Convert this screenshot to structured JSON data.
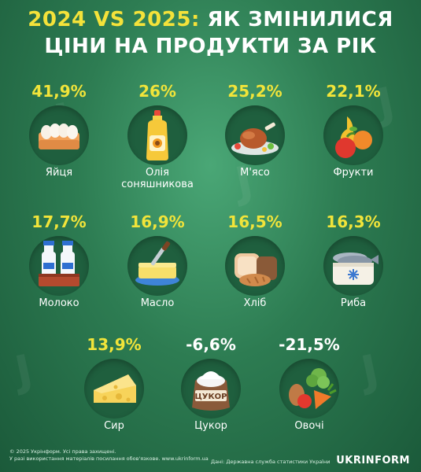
{
  "title": {
    "line1_accent": "2024 VS 2025:",
    "line1_rest": "ЯК ЗМІНИЛИСЯ",
    "line2": "ЦІНИ НА ПРОДУКТИ ЗА РІК"
  },
  "items": [
    {
      "percent": "41,9%",
      "label": "Яйця",
      "icon": "eggs-icon"
    },
    {
      "percent": "26%",
      "label": "Олія соняшникова",
      "icon": "sunflower-oil-icon"
    },
    {
      "percent": "25,2%",
      "label": "М'ясо",
      "icon": "meat-icon"
    },
    {
      "percent": "22,1%",
      "label": "Фрукти",
      "icon": "fruits-icon"
    },
    {
      "percent": "17,7%",
      "label": "Молоко",
      "icon": "milk-icon"
    },
    {
      "percent": "16,9%",
      "label": "Масло",
      "icon": "butter-icon"
    },
    {
      "percent": "16,5%",
      "label": "Хліб",
      "icon": "bread-icon"
    },
    {
      "percent": "16,3%",
      "label": "Риба",
      "icon": "fish-icon"
    },
    {
      "percent": "13,9%",
      "label": "Сир",
      "icon": "cheese-icon"
    },
    {
      "percent": "-6,6%",
      "label": "Цукор",
      "icon": "sugar-icon",
      "bag_text": "ЦУКОР"
    },
    {
      "percent": "-21,5%",
      "label": "Овочі",
      "icon": "vegetables-icon"
    }
  ],
  "footer": {
    "copyright": "© 2025 Укрінформ. Усі права захищені.",
    "usage": "У разі використання матеріалів посилання обов'язкове. www.ukrinform.ua",
    "source": "Дані: Державна служба статистики України",
    "logo": "UKRINFORM"
  },
  "colors": {
    "background": "#2d7c52",
    "accent_yellow": "#f1e43a",
    "circle": "#1f5f3e"
  }
}
